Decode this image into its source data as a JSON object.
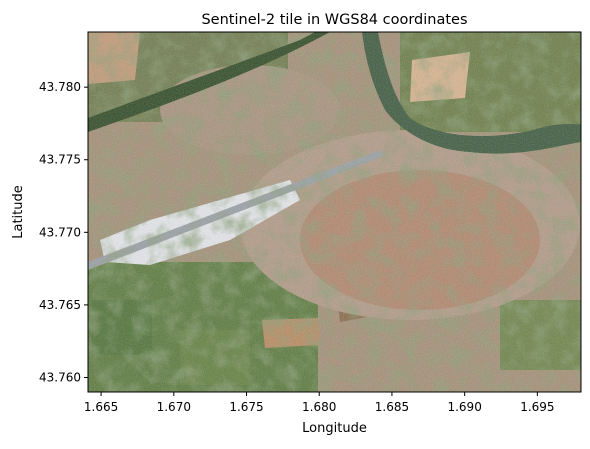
{
  "chart_data": {
    "type": "heatmap",
    "title": "Sentinel-2 tile in WGS84 coordinates",
    "xlabel": "Longitude",
    "ylabel": "Latitude",
    "xlim": [
      1.6641,
      1.698
    ],
    "ylim": [
      43.759,
      43.7838
    ],
    "xticks": [
      1.665,
      1.67,
      1.675,
      1.68,
      1.685,
      1.69,
      1.695
    ],
    "xtick_labels": [
      "1.665",
      "1.670",
      "1.675",
      "1.680",
      "1.685",
      "1.690",
      "1.695"
    ],
    "yticks": [
      43.76,
      43.765,
      43.77,
      43.775,
      43.78
    ],
    "ytick_labels": [
      "43.760",
      "43.765",
      "43.770",
      "43.775",
      "43.780"
    ],
    "grid": false,
    "image": "true-color satellite imagery (RGB)",
    "colors": {
      "vegetation": "#5b7a3c",
      "dark_vegetation": "#2f4a24",
      "river": "#3d5a3e",
      "urban": "#b39a86",
      "roofs": "#b86e50",
      "bright_industrial": "#e6e8ec",
      "field": "#8a6a4a",
      "bare_soil": "#d8b48e"
    }
  }
}
